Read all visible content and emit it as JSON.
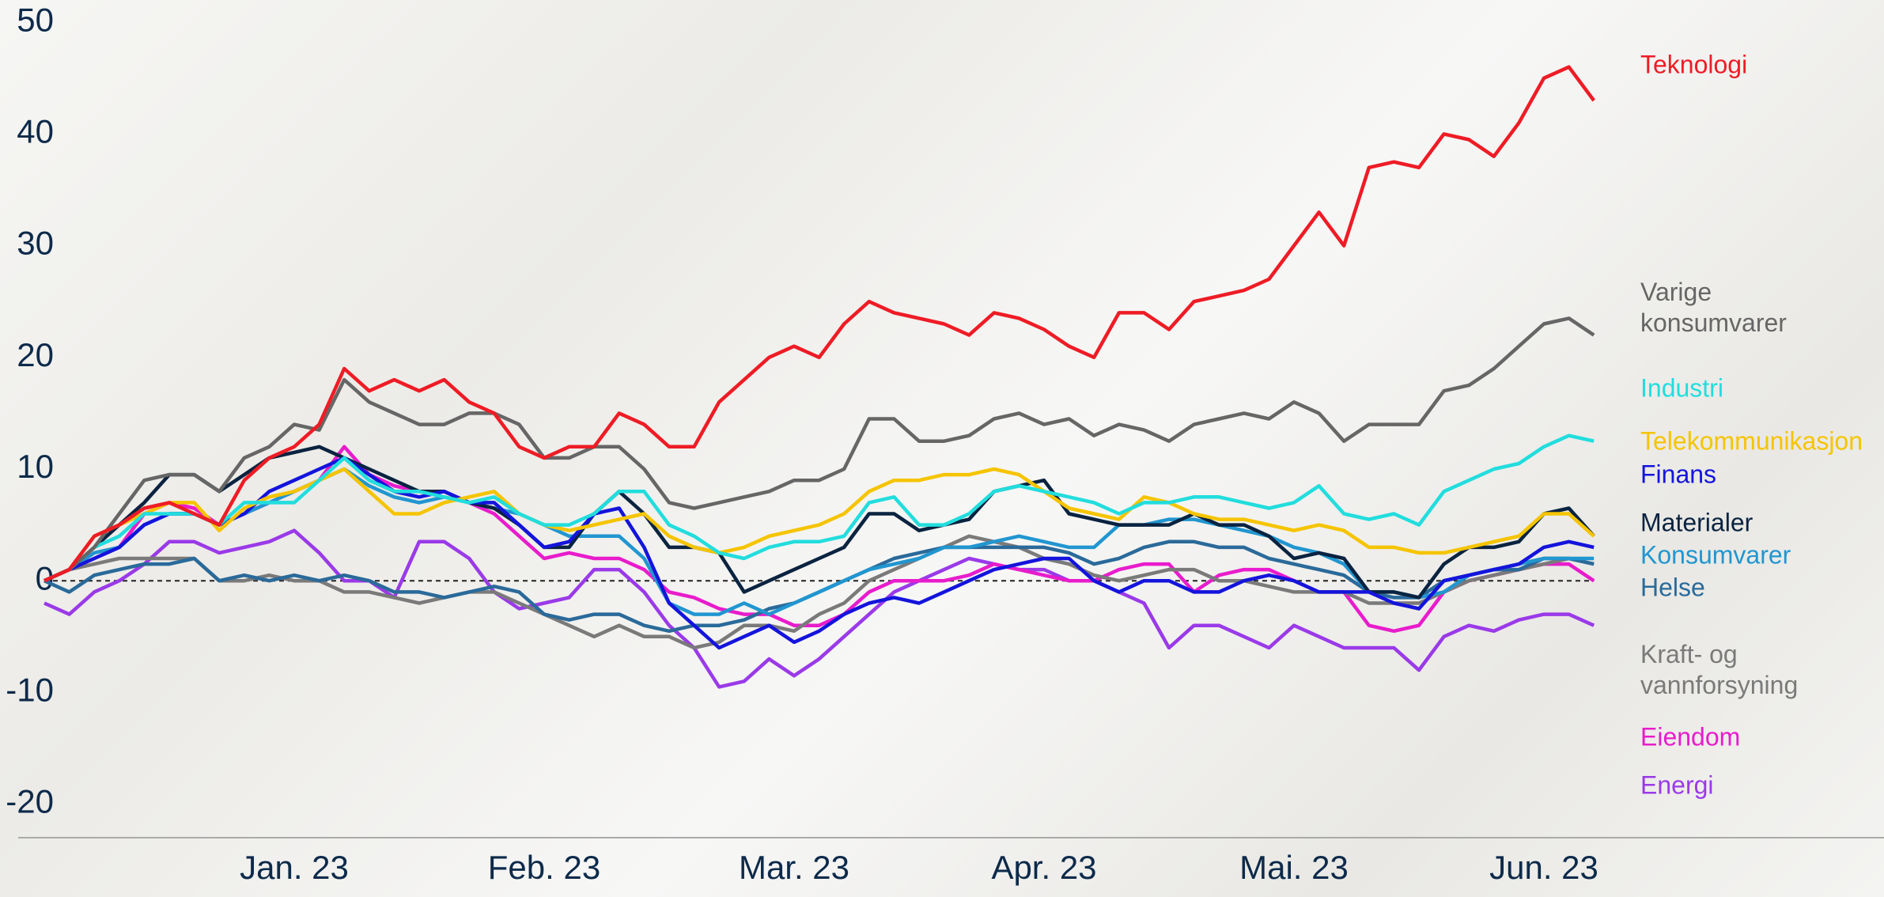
{
  "chart_data": {
    "type": "line",
    "categories": [
      null,
      null,
      null,
      null,
      null,
      null,
      null,
      null,
      null,
      null,
      "Jan. 23",
      null,
      null,
      null,
      null,
      null,
      null,
      null,
      null,
      null,
      "Feb. 23",
      null,
      null,
      null,
      null,
      null,
      null,
      null,
      null,
      null,
      "Mar. 23",
      null,
      null,
      null,
      null,
      null,
      null,
      null,
      null,
      null,
      "Apr. 23",
      null,
      null,
      null,
      null,
      null,
      null,
      null,
      null,
      null,
      "Mai. 23",
      null,
      null,
      null,
      null,
      null,
      null,
      null,
      null,
      null,
      "Jun. 23",
      null,
      null
    ],
    "ylim": [
      -23,
      52
    ],
    "yticks": [
      -20,
      -10,
      0,
      10,
      20,
      30,
      40,
      50
    ],
    "series": [
      {
        "name": "Teknologi",
        "color": "#ee1c25",
        "values": [
          0,
          1,
          4,
          5,
          6.5,
          7,
          6,
          5,
          9,
          11,
          12,
          14,
          19,
          17,
          18,
          17,
          18,
          16,
          15,
          12,
          11,
          12,
          12,
          15,
          14,
          12,
          12,
          16,
          18,
          20,
          21,
          20,
          23,
          25,
          24,
          23.5,
          23,
          22,
          24,
          23.5,
          22.5,
          21,
          20,
          24,
          24,
          22.5,
          25,
          25.5,
          26,
          27,
          30,
          33,
          30,
          37,
          37.5,
          37,
          40,
          39.5,
          38,
          41,
          45,
          46,
          43
        ]
      },
      {
        "name": "Varige konsumvarer",
        "color": "#666666",
        "values": [
          0,
          1,
          3,
          6,
          9,
          9.5,
          9.5,
          8,
          11,
          12,
          14,
          13.5,
          18,
          16,
          15,
          14,
          14,
          15,
          15,
          14,
          11,
          11,
          12,
          12,
          10,
          7,
          6.5,
          7,
          7.5,
          8,
          9,
          9,
          10,
          14.5,
          14.5,
          12.5,
          12.5,
          13,
          14.5,
          15,
          14,
          14.5,
          13,
          14,
          13.5,
          12.5,
          14,
          14.5,
          15,
          14.5,
          16,
          15,
          12.5,
          14,
          14,
          14,
          17,
          17.5,
          19,
          21,
          23,
          23.5,
          22
        ]
      },
      {
        "name": "Industri",
        "color": "#22dddd",
        "values": [
          0,
          1,
          3,
          4,
          6,
          6,
          6,
          5,
          7,
          7,
          7,
          9,
          11,
          9,
          8,
          8,
          7.5,
          7,
          7.5,
          6,
          5,
          5,
          6,
          8,
          8,
          5,
          4,
          2.5,
          2,
          3,
          3.5,
          3.5,
          4,
          7,
          7.5,
          5,
          5,
          6,
          8,
          8.5,
          8,
          7.5,
          7,
          6,
          7,
          7,
          7.5,
          7.5,
          7,
          6.5,
          7,
          8.5,
          6,
          5.5,
          6,
          5,
          8,
          9,
          10,
          10.5,
          12,
          13,
          12.5
        ]
      },
      {
        "name": "Telekommunikasjon",
        "color": "#f5c400",
        "values": [
          0,
          1,
          4,
          5,
          6,
          7,
          7,
          4.5,
          6.5,
          7.5,
          8,
          9,
          10,
          8,
          6,
          6,
          7,
          7.5,
          8,
          6,
          5,
          4.5,
          5,
          5.5,
          6,
          4,
          3,
          2.5,
          3,
          4,
          4.5,
          5,
          6,
          8,
          9,
          9,
          9.5,
          9.5,
          10,
          9.5,
          8,
          6.5,
          6,
          5.5,
          7.5,
          7,
          6,
          5.5,
          5.5,
          5,
          4.5,
          5,
          4.5,
          3,
          3,
          2.5,
          2.5,
          3,
          3.5,
          4,
          6,
          6,
          4
        ]
      },
      {
        "name": "Finans",
        "color": "#1414dc",
        "values": [
          0,
          1,
          2,
          3,
          5,
          6,
          6,
          5,
          6,
          8,
          9,
          10,
          11,
          9.5,
          8,
          7.5,
          8,
          7,
          7,
          5,
          3,
          3.5,
          6,
          6.5,
          3,
          -2,
          -4,
          -6,
          -5,
          -4,
          -5.5,
          -4.5,
          -3,
          -2,
          -1.5,
          -2,
          -1,
          0,
          1,
          1.5,
          2,
          2,
          0,
          -1,
          0,
          0,
          -1,
          -1,
          0,
          0.5,
          0,
          -1,
          -1,
          -1,
          -2,
          -2.5,
          0,
          0.5,
          1,
          1.5,
          3,
          3.5,
          3
        ]
      },
      {
        "name": "Materialer",
        "color": "#0a2340",
        "values": [
          0,
          1,
          3,
          5,
          7,
          9.5,
          9.5,
          8,
          9.5,
          11,
          11.5,
          12,
          11,
          10,
          9,
          8,
          8,
          7,
          6.5,
          5,
          3,
          3,
          6,
          8,
          6,
          3,
          3,
          2.5,
          -1,
          0,
          1,
          2,
          3,
          6,
          6,
          4.5,
          5,
          5.5,
          8,
          8.5,
          9,
          6,
          5.5,
          5,
          5,
          5,
          6,
          5,
          5,
          4,
          2,
          2.5,
          2,
          -1,
          -1,
          -1.5,
          1.5,
          3,
          3,
          3.5,
          6,
          6.5,
          4
        ]
      },
      {
        "name": "Konsumvarer",
        "color": "#2196d0",
        "values": [
          0,
          1,
          2.5,
          3,
          5,
          6,
          6,
          5,
          6,
          7,
          8,
          9,
          10,
          8.5,
          7.5,
          7,
          7.5,
          7,
          6.5,
          6,
          5,
          4,
          4,
          4,
          2,
          -2,
          -3,
          -3,
          -2,
          -3,
          -2,
          -1,
          0,
          1,
          1.5,
          2,
          3,
          3,
          3.5,
          4,
          3.5,
          3,
          3,
          5,
          5,
          5.5,
          5.5,
          5,
          4.5,
          4,
          3,
          2.5,
          1.5,
          -1,
          -1,
          -1.5,
          -1,
          0.5,
          1,
          1.5,
          2,
          2,
          2
        ]
      },
      {
        "name": "Helse",
        "color": "#2a6a9a",
        "values": [
          0,
          -1,
          0.5,
          1,
          1.5,
          1.5,
          2,
          0,
          0.5,
          0,
          0.5,
          0,
          0.5,
          0,
          -1,
          -1,
          -1.5,
          -1,
          -0.5,
          -1,
          -3,
          -3.5,
          -3,
          -3,
          -4,
          -4.5,
          -4,
          -4,
          -3.5,
          -2.5,
          -2,
          -1,
          0,
          1,
          2,
          2.5,
          3,
          3,
          3,
          3,
          3,
          2.5,
          1.5,
          2,
          3,
          3.5,
          3.5,
          3,
          3,
          2,
          1.5,
          1,
          0.5,
          -1,
          -1.5,
          -1.5,
          0,
          0.5,
          1,
          1,
          2,
          2,
          1.5
        ]
      },
      {
        "name": "Kraft- og vannforsyning",
        "color": "#7a7a7a",
        "values": [
          0,
          1,
          1.5,
          2,
          2,
          2,
          2,
          0,
          0,
          0.5,
          0,
          0,
          -1,
          -1,
          -1.5,
          -2,
          -1.5,
          -1,
          -1,
          -2,
          -3,
          -4,
          -5,
          -4,
          -5,
          -5,
          -6,
          -5.5,
          -4,
          -4,
          -4.5,
          -3,
          -2,
          0,
          1,
          2,
          3,
          4,
          3.5,
          3,
          2,
          1.5,
          0.5,
          0,
          0.5,
          1,
          1,
          0,
          0,
          -0.5,
          -1,
          -1,
          -1,
          -2,
          -2,
          -2,
          -1,
          0,
          0.5,
          1,
          1.5,
          2,
          1.5
        ]
      },
      {
        "name": "Eiendom",
        "color": "#e81ccc",
        "values": [
          0,
          1,
          2,
          3,
          6,
          7,
          6.5,
          5,
          6,
          7,
          8,
          9,
          12,
          9.5,
          8.5,
          8,
          8,
          7,
          6,
          4,
          2,
          2.5,
          2,
          2,
          1,
          -1,
          -1.5,
          -2.5,
          -3,
          -3,
          -4,
          -4,
          -3,
          -1,
          0,
          0,
          0,
          0.5,
          1.5,
          1,
          0.5,
          0,
          0,
          1,
          1.5,
          1.5,
          -1,
          0.5,
          1,
          1,
          0,
          -1,
          -1,
          -4,
          -4.5,
          -4,
          -1,
          0,
          0.5,
          1,
          1.5,
          1.5,
          0
        ]
      },
      {
        "name": "Energi",
        "color": "#9a3ae8",
        "values": [
          -2,
          -3,
          -1,
          0,
          1.5,
          3.5,
          3.5,
          2.5,
          3,
          3.5,
          4.5,
          2.5,
          0,
          0,
          -1.5,
          3.5,
          3.5,
          2,
          -1,
          -2.5,
          -2,
          -1.5,
          1,
          1,
          -1,
          -4,
          -6,
          -9.5,
          -9,
          -7,
          -8.5,
          -7,
          -5,
          -3,
          -1,
          0,
          1,
          2,
          1.5,
          1,
          1,
          0,
          0,
          -1,
          -2,
          -6,
          -4,
          -4,
          -5,
          -6,
          -4,
          -5,
          -6,
          -6,
          -6,
          -8,
          -5,
          -4,
          -4.5,
          -3.5,
          -3,
          -3,
          -4
        ]
      }
    ]
  }
}
